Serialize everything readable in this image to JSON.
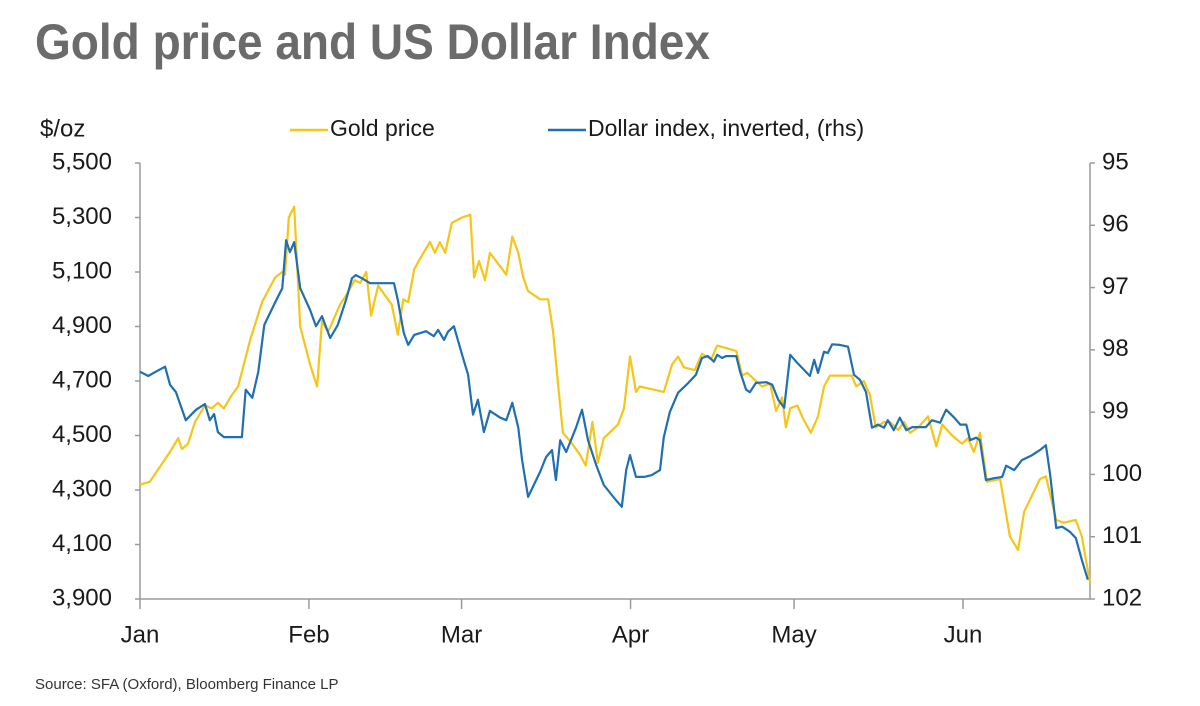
{
  "chart_data": {
    "type": "line",
    "title": "Gold price and US Dollar Index",
    "y_label": "$/oz",
    "source": "Source: SFA (Oxford), Bloomberg Finance LP",
    "xlim": [
      0,
      174.3
    ],
    "xticks": [
      {
        "value": 0,
        "label": "Jan"
      },
      {
        "value": 31,
        "label": "Feb"
      },
      {
        "value": 59,
        "label": "Mar"
      },
      {
        "value": 90,
        "label": "Apr"
      },
      {
        "value": 120,
        "label": "May"
      },
      {
        "value": 151,
        "label": "Jun"
      }
    ],
    "ylim": [
      3900,
      5500
    ],
    "yticks": [
      {
        "value": 3900,
        "label": "3,900"
      },
      {
        "value": 4100,
        "label": "4,100"
      },
      {
        "value": 4300,
        "label": "4,300"
      },
      {
        "value": 4500,
        "label": "4,500"
      },
      {
        "value": 4700,
        "label": "4,700"
      },
      {
        "value": 4900,
        "label": "4,900"
      },
      {
        "value": 5100,
        "label": "5,100"
      },
      {
        "value": 5300,
        "label": "5,300"
      },
      {
        "value": 5500,
        "label": "5,500"
      }
    ],
    "y2lim": [
      102,
      95
    ],
    "y2ticks": [
      95,
      96,
      97,
      98,
      99,
      100,
      101,
      102
    ],
    "grid": false,
    "series": [
      {
        "name": "Gold price",
        "color": "#f5c518",
        "axis": "y",
        "x": [
          0,
          1.8,
          5.5,
          7.0,
          7.7,
          8.8,
          10.1,
          11.9,
          13.2,
          14.3,
          15.4,
          16.9,
          18.0,
          20.2,
          22.4,
          24.8,
          26.1,
          26.6,
          27.3,
          28.3,
          29.4,
          31.2,
          32.5,
          33.4,
          34.5,
          36.7,
          38.0,
          39.4,
          40.4,
          41.5,
          42.4,
          43.7,
          45.1,
          46.2,
          47.3,
          48.3,
          49.2,
          50.3,
          51.7,
          53.2,
          54.1,
          55.0,
          56.0,
          57.2,
          59.1,
          60.6,
          61.3,
          62.2,
          63.3,
          64.2,
          66.1,
          67.2,
          68.3,
          69.4,
          70.3,
          71.2,
          73.4,
          74.9,
          75.8,
          76.7,
          77.6,
          79.3,
          80.7,
          81.8,
          83.0,
          84.0,
          85.1,
          87.7,
          88.8,
          89.9,
          91.0,
          91.7,
          93.9,
          96.1,
          97.6,
          98.7,
          99.8,
          101.8,
          103.1,
          104.8,
          105.9,
          107.7,
          109.4,
          110.5,
          111.4,
          113.0,
          114.1,
          115.6,
          116.7,
          117.8,
          118.5,
          119.3,
          120.6,
          121.7,
          123.1,
          124.4,
          125.5,
          126.6,
          128.4,
          130.6,
          131.4,
          132.8,
          133.9,
          135.0,
          136.5,
          137.6,
          139.1,
          140.2,
          141.3,
          142.8,
          144.6,
          146.1,
          147.2,
          149.0,
          150.8,
          151.9,
          153.0,
          154.1,
          155.4,
          157.8,
          159.6,
          161.1,
          162.2,
          165.1,
          166.2,
          168.1,
          169.5,
          171.7,
          172.8,
          174.3
        ],
        "values": [
          4320,
          4330,
          4440,
          4490,
          4450,
          4470,
          4550,
          4610,
          4600,
          4620,
          4600,
          4650,
          4680,
          4850,
          4990,
          5080,
          5100,
          5090,
          5300,
          5340,
          4900,
          4760,
          4680,
          4920,
          4880,
          4980,
          5020,
          5070,
          5060,
          5100,
          4940,
          5050,
          5010,
          4980,
          4870,
          5000,
          4990,
          5110,
          5160,
          5210,
          5170,
          5210,
          5170,
          5280,
          5300,
          5310,
          5080,
          5140,
          5070,
          5170,
          5120,
          5090,
          5230,
          5170,
          5080,
          5030,
          5000,
          5000,
          4880,
          4690,
          4510,
          4470,
          4430,
          4390,
          4550,
          4400,
          4490,
          4540,
          4600,
          4790,
          4660,
          4680,
          4670,
          4660,
          4760,
          4790,
          4750,
          4740,
          4800,
          4780,
          4830,
          4820,
          4810,
          4720,
          4730,
          4700,
          4680,
          4690,
          4590,
          4640,
          4530,
          4600,
          4610,
          4560,
          4510,
          4570,
          4680,
          4720,
          4720,
          4720,
          4680,
          4700,
          4650,
          4530,
          4550,
          4550,
          4520,
          4550,
          4510,
          4530,
          4570,
          4460,
          4540,
          4500,
          4470,
          4490,
          4440,
          4510,
          4330,
          4340,
          4130,
          4080,
          4220,
          4340,
          4350,
          4190,
          4180,
          4190,
          4130,
          3960
        ]
      },
      {
        "name": "Dollar index, inverted, (rhs)",
        "color": "#1f6fb2",
        "axis": "y2",
        "x": [
          0,
          1.5,
          2.9,
          4.6,
          5.5,
          6.6,
          8.4,
          10.3,
          11.9,
          12.8,
          13.6,
          14.3,
          15.4,
          16.9,
          18.7,
          19.4,
          20.6,
          21.7,
          22.8,
          25.0,
          26.1,
          26.8,
          27.5,
          28.3,
          29.4,
          31.2,
          32.3,
          33.4,
          34.9,
          36.3,
          37.8,
          38.9,
          39.6,
          40.7,
          42.2,
          44.0,
          46.6,
          47.3,
          48.4,
          49.2,
          50.3,
          52.5,
          53.9,
          54.7,
          55.8,
          56.5,
          57.6,
          59.1,
          60.2,
          61.1,
          62.0,
          63.1,
          64.2,
          66.1,
          67.2,
          68.3,
          69.4,
          70.1,
          71.2,
          73.4,
          74.5,
          75.6,
          76.3,
          77.1,
          78.2,
          80.0,
          81.1,
          82.2,
          83.7,
          85.1,
          87.3,
          88.4,
          89.2,
          89.9,
          91.0,
          92.5,
          93.9,
          95.4,
          96.1,
          97.2,
          98.7,
          100.6,
          102.0,
          103.1,
          104.2,
          105.3,
          105.9,
          106.8,
          107.5,
          109.4,
          110.1,
          111.2,
          111.9,
          113.0,
          114.9,
          116.0,
          117.1,
          118.2,
          119.3,
          120.4,
          121.8,
          122.9,
          123.7,
          124.4,
          125.5,
          126.2,
          127.0,
          128.4,
          129.9,
          131.0,
          132.1,
          133.2,
          134.3,
          135.4,
          136.5,
          137.2,
          138.3,
          139.4,
          140.6,
          141.7,
          143.1,
          144.2,
          145.3,
          146.8,
          147.9,
          149.4,
          150.5,
          151.6,
          152.3,
          153.4,
          154.1,
          155.2,
          156.7,
          158.2,
          158.9,
          160.4,
          161.8,
          163.7,
          165.1,
          166.2,
          167.0,
          168.1,
          169.2,
          170.6,
          171.7,
          172.8,
          173.9
        ],
        "values": [
          98.35,
          98.42,
          98.35,
          98.27,
          98.56,
          98.68,
          99.13,
          98.96,
          98.87,
          99.13,
          99.03,
          99.32,
          99.4,
          99.4,
          99.4,
          98.64,
          98.77,
          98.35,
          97.6,
          97.2,
          97.01,
          96.24,
          96.43,
          96.27,
          97.01,
          97.36,
          97.62,
          97.46,
          97.81,
          97.6,
          97.2,
          96.85,
          96.8,
          96.85,
          96.93,
          96.93,
          96.93,
          97.2,
          97.73,
          97.92,
          97.76,
          97.7,
          97.78,
          97.68,
          97.84,
          97.71,
          97.62,
          98.08,
          98.4,
          99.04,
          98.8,
          99.32,
          98.98,
          99.09,
          99.13,
          98.85,
          99.25,
          99.77,
          100.36,
          99.96,
          99.72,
          99.61,
          100.09,
          99.45,
          99.64,
          99.25,
          98.96,
          99.45,
          99.85,
          100.17,
          100.41,
          100.52,
          99.93,
          99.69,
          100.04,
          100.04,
          100.01,
          99.93,
          99.4,
          99.0,
          98.69,
          98.53,
          98.4,
          98.13,
          98.1,
          98.19,
          98.08,
          98.13,
          98.1,
          98.1,
          98.35,
          98.64,
          98.68,
          98.53,
          98.52,
          98.56,
          98.8,
          98.93,
          98.08,
          98.19,
          98.32,
          98.42,
          98.16,
          98.37,
          98.03,
          98.05,
          97.91,
          97.92,
          97.95,
          98.4,
          98.48,
          98.68,
          99.25,
          99.2,
          99.25,
          99.13,
          99.29,
          99.09,
          99.29,
          99.24,
          99.24,
          99.24,
          99.13,
          99.17,
          98.96,
          99.09,
          99.2,
          99.2,
          99.45,
          99.41,
          99.45,
          100.09,
          100.06,
          100.04,
          99.86,
          99.93,
          99.77,
          99.69,
          99.61,
          99.53,
          100.01,
          100.86,
          100.84,
          100.92,
          101.02,
          101.37,
          101.69
        ]
      }
    ]
  }
}
